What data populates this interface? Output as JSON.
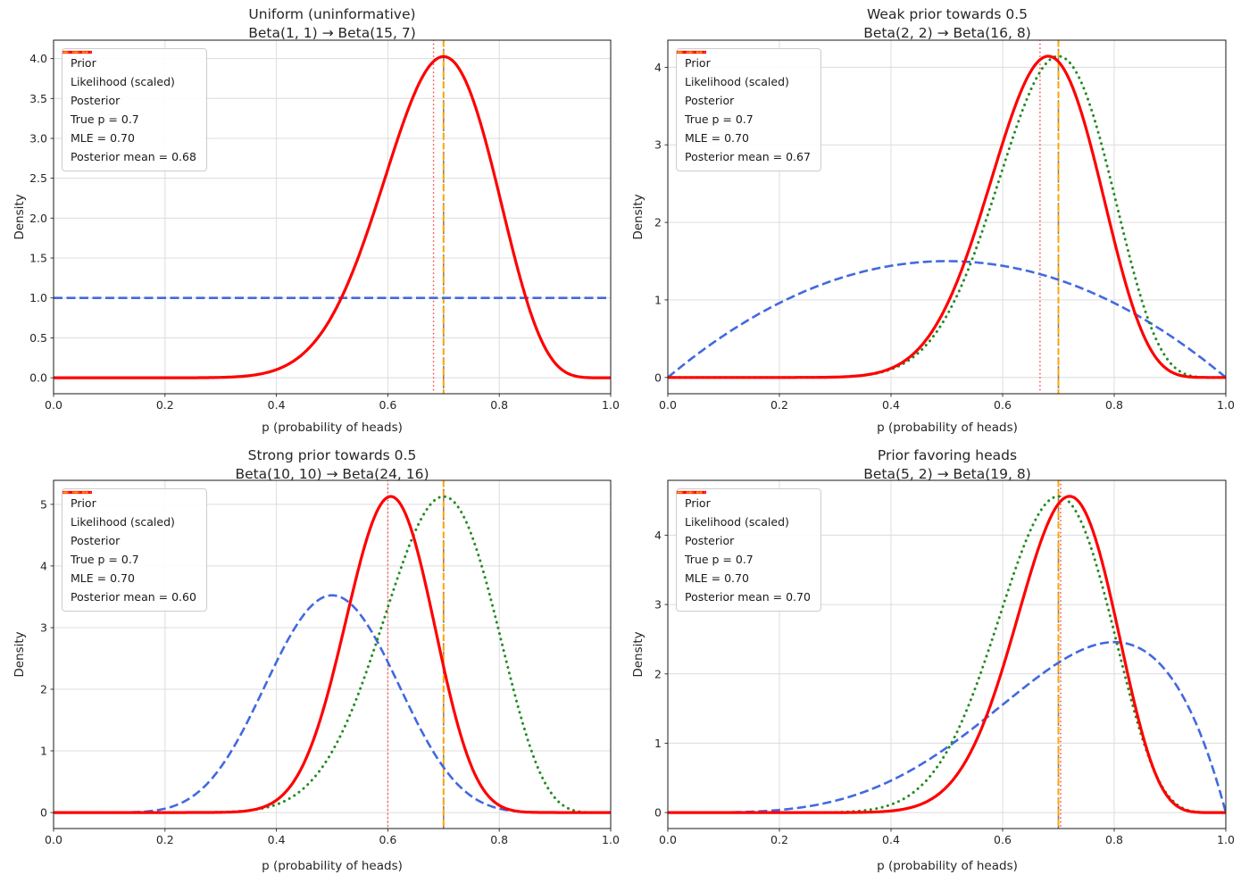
{
  "chart_data": [
    {
      "type": "line",
      "title": "Uniform (uninformative)",
      "subtitle": "Beta(1, 1) → Beta(15, 7)",
      "xlabel": "p (probability of heads)",
      "ylabel": "Density",
      "xlim": [
        0,
        1
      ],
      "ylim": [
        -0.2,
        4.23
      ],
      "xticks": [
        0,
        0.2,
        0.4,
        0.6,
        0.8,
        1.0
      ],
      "xtick_labels": [
        "0.0",
        "0.2",
        "0.4",
        "0.6",
        "0.8",
        "1.0"
      ],
      "yticks": [
        0,
        0.5,
        1.0,
        1.5,
        2.0,
        2.5,
        3.0,
        3.5,
        4.0
      ],
      "ytick_labels": [
        "0.0",
        "0.5",
        "1.0",
        "1.5",
        "2.0",
        "2.5",
        "3.0",
        "3.5",
        "4.0"
      ],
      "grid": true,
      "legend_position": "upper-left",
      "series": [
        {
          "name": "Prior",
          "distribution": "beta",
          "params": [
            1,
            1
          ],
          "peak_density": 1.0,
          "style": "dashed",
          "color": "#4169e1",
          "lw": 2.6
        },
        {
          "name": "Likelihood (scaled)",
          "distribution": "beta",
          "params": [
            15,
            7
          ],
          "scale_to_max_of": "Posterior",
          "peak_density": 4.02,
          "style": "dotted",
          "color": "#228b22",
          "lw": 3.0
        },
        {
          "name": "Posterior",
          "distribution": "beta",
          "params": [
            15,
            7
          ],
          "peak_density": 4.02,
          "style": "solid",
          "color": "#ff0000",
          "lw": 3.2
        }
      ],
      "vlines": [
        {
          "name": "True p = 0.7",
          "x": 0.7,
          "style": "dashed",
          "color": "#7f7f7f",
          "lw": 1.6
        },
        {
          "name": "MLE = 0.70",
          "x": 0.7,
          "style": "dashed",
          "color": "#ffa500",
          "lw": 2.0
        },
        {
          "name": "Posterior mean = 0.68",
          "x": 0.682,
          "style": "dotted",
          "color": "#ff5050",
          "lw": 1.7
        }
      ],
      "legend": [
        {
          "label": "Prior",
          "color": "#4169e1",
          "style": "dashed",
          "lw": 2.6
        },
        {
          "label": "Likelihood (scaled)",
          "color": "#228b22",
          "style": "dotted",
          "lw": 3.0
        },
        {
          "label": "Posterior",
          "color": "#ff0000",
          "style": "solid",
          "lw": 3.2
        },
        {
          "label": "True p = 0.7",
          "color": "#7f7f7f",
          "style": "dashed",
          "lw": 1.6
        },
        {
          "label": "MLE = 0.70",
          "color": "#ffa500",
          "style": "dashed",
          "lw": 2.0
        },
        {
          "label": "Posterior mean = 0.68",
          "color": "#ff5050",
          "style": "dotted",
          "lw": 1.7
        }
      ]
    },
    {
      "type": "line",
      "title": "Weak prior towards 0.5",
      "subtitle": "Beta(2, 2) → Beta(16, 8)",
      "xlabel": "p (probability of heads)",
      "ylabel": "Density",
      "xlim": [
        0,
        1
      ],
      "ylim": [
        -0.21,
        4.35
      ],
      "xticks": [
        0,
        0.2,
        0.4,
        0.6,
        0.8,
        1.0
      ],
      "xtick_labels": [
        "0.0",
        "0.2",
        "0.4",
        "0.6",
        "0.8",
        "1.0"
      ],
      "yticks": [
        0,
        1,
        2,
        3,
        4
      ],
      "ytick_labels": [
        "0",
        "1",
        "2",
        "3",
        "4"
      ],
      "grid": true,
      "legend_position": "upper-left",
      "series": [
        {
          "name": "Prior",
          "distribution": "beta",
          "params": [
            2,
            2
          ],
          "peak_density": 1.5,
          "style": "dashed",
          "color": "#4169e1",
          "lw": 2.6
        },
        {
          "name": "Likelihood (scaled)",
          "distribution": "beta",
          "params": [
            15,
            7
          ],
          "scale_to_max_of": "Posterior",
          "peak_density": 4.15,
          "style": "dotted",
          "color": "#228b22",
          "lw": 3.0
        },
        {
          "name": "Posterior",
          "distribution": "beta",
          "params": [
            16,
            8
          ],
          "peak_density": 4.15,
          "style": "solid",
          "color": "#ff0000",
          "lw": 3.2
        }
      ],
      "vlines": [
        {
          "name": "True p = 0.7",
          "x": 0.7,
          "style": "dashed",
          "color": "#7f7f7f",
          "lw": 1.6
        },
        {
          "name": "MLE = 0.70",
          "x": 0.7,
          "style": "dashed",
          "color": "#ffa500",
          "lw": 2.0
        },
        {
          "name": "Posterior mean = 0.67",
          "x": 0.667,
          "style": "dotted",
          "color": "#ff5050",
          "lw": 1.7
        }
      ],
      "legend": [
        {
          "label": "Prior",
          "color": "#4169e1",
          "style": "dashed",
          "lw": 2.6
        },
        {
          "label": "Likelihood (scaled)",
          "color": "#228b22",
          "style": "dotted",
          "lw": 3.0
        },
        {
          "label": "Posterior",
          "color": "#ff0000",
          "style": "solid",
          "lw": 3.2
        },
        {
          "label": "True p = 0.7",
          "color": "#7f7f7f",
          "style": "dashed",
          "lw": 1.6
        },
        {
          "label": "MLE = 0.70",
          "color": "#ffa500",
          "style": "dashed",
          "lw": 2.0
        },
        {
          "label": "Posterior mean = 0.67",
          "color": "#ff5050",
          "style": "dotted",
          "lw": 1.7
        }
      ]
    },
    {
      "type": "line",
      "title": "Strong prior towards 0.5",
      "subtitle": "Beta(10, 10) → Beta(24, 16)",
      "xlabel": "p (probability of heads)",
      "ylabel": "Density",
      "xlim": [
        0,
        1
      ],
      "ylim": [
        -0.26,
        5.39
      ],
      "xticks": [
        0,
        0.2,
        0.4,
        0.6,
        0.8,
        1.0
      ],
      "xtick_labels": [
        "0.0",
        "0.2",
        "0.4",
        "0.6",
        "0.8",
        "1.0"
      ],
      "yticks": [
        0,
        1,
        2,
        3,
        4,
        5
      ],
      "ytick_labels": [
        "0",
        "1",
        "2",
        "3",
        "4",
        "5"
      ],
      "grid": true,
      "legend_position": "upper-left",
      "series": [
        {
          "name": "Prior",
          "distribution": "beta",
          "params": [
            10,
            10
          ],
          "peak_density": 3.52,
          "style": "dashed",
          "color": "#4169e1",
          "lw": 2.6
        },
        {
          "name": "Likelihood (scaled)",
          "distribution": "beta",
          "params": [
            15,
            7
          ],
          "scale_to_max_of": "Posterior",
          "peak_density": 5.13,
          "style": "dotted",
          "color": "#228b22",
          "lw": 3.0
        },
        {
          "name": "Posterior",
          "distribution": "beta",
          "params": [
            24,
            16
          ],
          "peak_density": 5.13,
          "style": "solid",
          "color": "#ff0000",
          "lw": 3.2
        }
      ],
      "vlines": [
        {
          "name": "True p = 0.7",
          "x": 0.7,
          "style": "dashed",
          "color": "#7f7f7f",
          "lw": 1.6
        },
        {
          "name": "MLE = 0.70",
          "x": 0.7,
          "style": "dashed",
          "color": "#ffa500",
          "lw": 2.0
        },
        {
          "name": "Posterior mean = 0.60",
          "x": 0.6,
          "style": "dotted",
          "color": "#ff5050",
          "lw": 1.7
        }
      ],
      "legend": [
        {
          "label": "Prior",
          "color": "#4169e1",
          "style": "dashed",
          "lw": 2.6
        },
        {
          "label": "Likelihood (scaled)",
          "color": "#228b22",
          "style": "dotted",
          "lw": 3.0
        },
        {
          "label": "Posterior",
          "color": "#ff0000",
          "style": "solid",
          "lw": 3.2
        },
        {
          "label": "True p = 0.7",
          "color": "#7f7f7f",
          "style": "dashed",
          "lw": 1.6
        },
        {
          "label": "MLE = 0.70",
          "color": "#ffa500",
          "style": "dashed",
          "lw": 2.0
        },
        {
          "label": "Posterior mean = 0.60",
          "color": "#ff5050",
          "style": "dotted",
          "lw": 1.7
        }
      ]
    },
    {
      "type": "line",
      "title": "Prior favoring heads",
      "subtitle": "Beta(5, 2) → Beta(19, 8)",
      "xlabel": "p (probability of heads)",
      "ylabel": "Density",
      "xlim": [
        0,
        1
      ],
      "ylim": [
        -0.23,
        4.79
      ],
      "xticks": [
        0,
        0.2,
        0.4,
        0.6,
        0.8,
        1.0
      ],
      "xtick_labels": [
        "0.0",
        "0.2",
        "0.4",
        "0.6",
        "0.8",
        "1.0"
      ],
      "yticks": [
        0,
        1,
        2,
        3,
        4
      ],
      "ytick_labels": [
        "0",
        "1",
        "2",
        "3",
        "4"
      ],
      "grid": true,
      "legend_position": "upper-left",
      "series": [
        {
          "name": "Prior",
          "distribution": "beta",
          "params": [
            5,
            2
          ],
          "peak_density": 2.46,
          "style": "dashed",
          "color": "#4169e1",
          "lw": 2.6
        },
        {
          "name": "Likelihood (scaled)",
          "distribution": "beta",
          "params": [
            15,
            7
          ],
          "scale_to_max_of": "Posterior",
          "peak_density": 4.56,
          "style": "dotted",
          "color": "#228b22",
          "lw": 3.0
        },
        {
          "name": "Posterior",
          "distribution": "beta",
          "params": [
            19,
            8
          ],
          "peak_density": 4.56,
          "style": "solid",
          "color": "#ff0000",
          "lw": 3.2
        }
      ],
      "vlines": [
        {
          "name": "True p = 0.7",
          "x": 0.7,
          "style": "dashed",
          "color": "#7f7f7f",
          "lw": 1.6
        },
        {
          "name": "MLE = 0.70",
          "x": 0.7,
          "style": "dashed",
          "color": "#ffa500",
          "lw": 2.0
        },
        {
          "name": "Posterior mean = 0.70",
          "x": 0.704,
          "style": "dotted",
          "color": "#ff5050",
          "lw": 1.7
        }
      ],
      "legend": [
        {
          "label": "Prior",
          "color": "#4169e1",
          "style": "dashed",
          "lw": 2.6
        },
        {
          "label": "Likelihood (scaled)",
          "color": "#228b22",
          "style": "dotted",
          "lw": 3.0
        },
        {
          "label": "Posterior",
          "color": "#ff0000",
          "style": "solid",
          "lw": 3.2
        },
        {
          "label": "True p = 0.7",
          "color": "#7f7f7f",
          "style": "dashed",
          "lw": 1.6
        },
        {
          "label": "MLE = 0.70",
          "color": "#ffa500",
          "style": "dashed",
          "lw": 2.0
        },
        {
          "label": "Posterior mean = 0.70",
          "color": "#ff5050",
          "style": "dotted",
          "lw": 1.7
        }
      ]
    }
  ]
}
